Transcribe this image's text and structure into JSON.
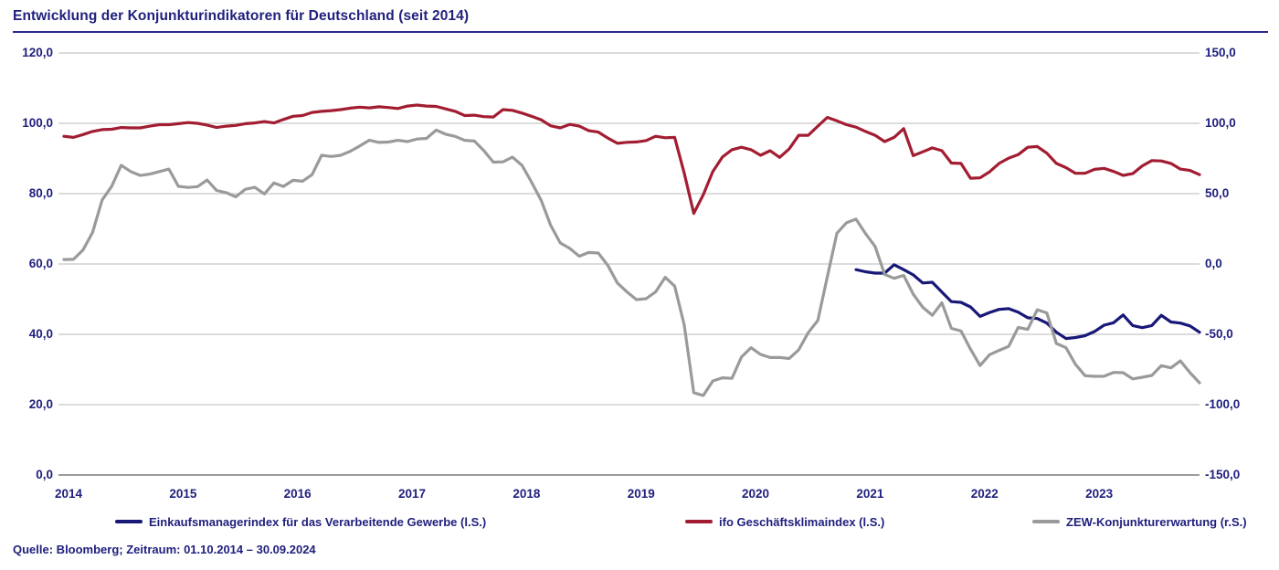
{
  "title": "Entwicklung der Konjunkturindikatoren für Deutschland (seit 2014)",
  "source": "Quelle: Bloomberg; Zeitraum: 01.10.2014 – 30.09.2024",
  "colors": {
    "navy_text": "#20207E",
    "title_rule": "#2A2A8C",
    "gridline": "#C6C6C6",
    "axis_line": "#9C9C9C",
    "series_pmi": "#181878",
    "series_ifo": "#A21D32",
    "series_zew": "#9A9A9A"
  },
  "chart_data": {
    "type": "line",
    "title": "Entwicklung der Konjunkturindikatoren für Deutschland (seit 2014)",
    "x_start_month": "2014-10",
    "x_end_month": "2024-09",
    "x_tick_labels": [
      "2014",
      "2015",
      "2016",
      "2017",
      "2018",
      "2019",
      "2020",
      "2021",
      "2022",
      "2023"
    ],
    "grid": true,
    "legend_position": "bottom",
    "left_axis": {
      "range": [
        0,
        120
      ],
      "tick_labels": [
        "120,0",
        "100,0",
        "80,0",
        "60,0",
        "40,0",
        "20,0",
        "0,0"
      ],
      "tick_values": [
        120,
        100,
        80,
        60,
        40,
        20,
        0
      ]
    },
    "right_axis": {
      "range": [
        -150,
        150
      ],
      "tick_labels": [
        "150,0",
        "100,0",
        "50,0",
        "0,0",
        "-50,0",
        "-100,0",
        "-150,0"
      ],
      "tick_values": [
        150,
        100,
        50,
        0,
        -50,
        -100,
        -150
      ]
    },
    "series": [
      {
        "id": "pmi",
        "name": "Einkaufsmanagerindex für das Verarbeitende Gewerbe (l.S.)",
        "axis": "left",
        "color_key": "series_pmi",
        "start_month": "2021-09",
        "start_offset_months": 83,
        "values": [
          58.4,
          57.8,
          57.4,
          57.4,
          59.8,
          58.4,
          56.9,
          54.6,
          54.8,
          52.0,
          49.3,
          49.1,
          47.8,
          45.1,
          46.2,
          47.1,
          47.3,
          46.3,
          44.7,
          44.5,
          43.2,
          40.6,
          38.8,
          39.1,
          39.6,
          40.8,
          42.6,
          43.3,
          45.5,
          42.5,
          41.9,
          42.5,
          45.4,
          43.5,
          43.2,
          42.4,
          40.6
        ]
      },
      {
        "id": "ifo",
        "name": "ifo Geschäftsklimaindex (l.S.)",
        "axis": "left",
        "color_key": "series_ifo",
        "start_month": "2014-10",
        "start_offset_months": 0,
        "values": [
          96.3,
          96.0,
          96.8,
          97.7,
          98.2,
          98.3,
          98.8,
          98.7,
          98.7,
          99.2,
          99.6,
          99.6,
          99.9,
          100.2,
          100.0,
          99.5,
          98.8,
          99.2,
          99.4,
          99.9,
          100.1,
          100.5,
          100.1,
          101.1,
          102.0,
          102.2,
          103.1,
          103.4,
          103.6,
          103.9,
          104.3,
          104.6,
          104.4,
          104.7,
          104.5,
          104.2,
          104.9,
          105.2,
          104.9,
          104.8,
          104.1,
          103.4,
          102.2,
          102.3,
          101.9,
          101.8,
          103.9,
          103.7,
          102.9,
          102.0,
          101.0,
          99.3,
          98.7,
          99.7,
          99.2,
          97.9,
          97.5,
          95.8,
          94.3,
          94.6,
          94.7,
          95.1,
          96.3,
          95.9,
          96.0,
          85.9,
          74.4,
          79.7,
          86.3,
          90.4,
          92.5,
          93.2,
          92.5,
          90.9,
          92.2,
          90.3,
          92.7,
          96.6,
          96.6,
          99.2,
          101.7,
          100.7,
          99.6,
          98.9,
          97.7,
          96.6,
          94.8,
          96.0,
          98.5,
          90.8,
          91.9,
          93.0,
          92.2,
          88.7,
          88.6,
          84.4,
          84.5,
          86.2,
          88.6,
          90.1,
          91.1,
          93.2,
          93.4,
          91.5,
          88.6,
          87.4,
          85.8,
          85.8,
          86.9,
          87.2,
          86.3,
          85.2,
          85.7,
          87.9,
          89.4,
          89.3,
          88.6,
          87.0,
          86.6,
          85.4
        ]
      },
      {
        "id": "zew",
        "name": "ZEW-Konjunkturerwartung (r.S.)",
        "axis": "right",
        "color_key": "series_zew",
        "start_month": "2014-10",
        "start_offset_months": 0,
        "values": [
          3.2,
          3.3,
          10.0,
          22.4,
          45.5,
          55.1,
          70.2,
          65.7,
          62.9,
          63.9,
          65.7,
          67.5,
          55.2,
          54.4,
          55.0,
          59.7,
          52.3,
          50.7,
          47.7,
          53.1,
          54.5,
          49.8,
          57.6,
          55.1,
          59.5,
          58.8,
          63.5,
          77.3,
          76.4,
          77.3,
          80.1,
          83.9,
          88.0,
          86.4,
          86.7,
          87.9,
          87.0,
          88.8,
          89.3,
          95.2,
          92.3,
          90.7,
          87.9,
          87.4,
          80.6,
          72.4,
          72.6,
          76.0,
          70.1,
          58.2,
          45.3,
          27.6,
          15.0,
          11.1,
          5.5,
          8.2,
          7.8,
          -1.1,
          -13.5,
          -19.9,
          -25.3,
          -24.7,
          -19.9,
          -9.5,
          -15.7,
          -43.1,
          -91.5,
          -93.5,
          -83.1,
          -80.9,
          -81.3,
          -66.2,
          -59.5,
          -64.3,
          -66.5,
          -66.4,
          -67.2,
          -61.0,
          -48.8,
          -40.1,
          -9.1,
          21.9,
          29.3,
          31.9,
          21.6,
          12.5,
          -7.4,
          -10.2,
          -8.1,
          -21.4,
          -30.8,
          -36.5,
          -27.6,
          -45.8,
          -47.6,
          -60.5,
          -72.2,
          -64.5,
          -61.4,
          -58.6,
          -45.1,
          -46.5,
          -32.5,
          -34.8,
          -56.5,
          -59.5,
          -71.3,
          -79.4,
          -79.9,
          -79.8,
          -77.1,
          -77.3,
          -81.7,
          -80.5,
          -79.2,
          -72.3,
          -73.8,
          -68.9,
          -77.3,
          -84.5
        ]
      }
    ]
  }
}
